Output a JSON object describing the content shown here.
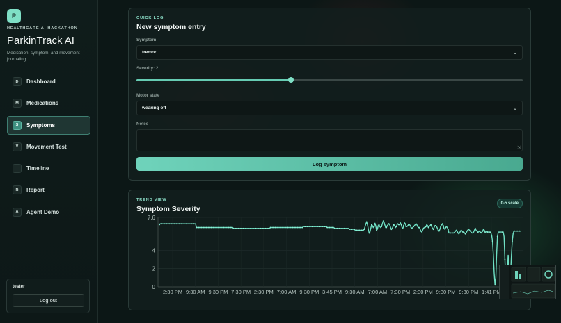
{
  "brand": {
    "logo_letter": "P",
    "eyebrow": "HEALTHCARE AI HACKATHON",
    "title": "ParkinTrack AI",
    "subtitle": "Medication, symptom, and movement journaling"
  },
  "nav": [
    {
      "badge": "D",
      "label": "Dashboard",
      "icon": "dashboard-icon"
    },
    {
      "badge": "M",
      "label": "Medications",
      "icon": "medications-icon"
    },
    {
      "badge": "S",
      "label": "Symptoms",
      "icon": "symptoms-icon",
      "active": true
    },
    {
      "badge": "V",
      "label": "Movement Test",
      "icon": "movement-icon"
    },
    {
      "badge": "T",
      "label": "Timeline",
      "icon": "timeline-icon"
    },
    {
      "badge": "R",
      "label": "Report",
      "icon": "report-icon"
    },
    {
      "badge": "A",
      "label": "Agent Demo",
      "icon": "agent-icon"
    }
  ],
  "user": {
    "name": "tester",
    "logout_label": "Log out"
  },
  "quick_log": {
    "eyebrow": "QUICK LOG",
    "title": "New symptom entry",
    "symptom_label": "Symptom",
    "symptom_value": "tremor",
    "severity_label": "Severity: 2",
    "severity_fraction": 0.4,
    "motor_label": "Motor state",
    "motor_value": "wearing off",
    "notes_label": "Notes",
    "notes_value": "",
    "submit_label": "Log symptom"
  },
  "trend": {
    "eyebrow": "TREND VIEW",
    "title": "Symptom Severity",
    "scale_badge": "0-5 scale"
  },
  "chart_data": {
    "type": "line",
    "yticks": [
      "7.6",
      "4",
      "2",
      "0"
    ],
    "ylim": [
      0,
      7.6
    ],
    "xticks": [
      "2:30 PM",
      "9:30 AM",
      "9:30 PM",
      "7:30 PM",
      "2:30 PM",
      "7:00 AM",
      "9:30 PM",
      "3:45 PM",
      "9:30 AM",
      "7:00 AM",
      "7:30 PM",
      "2:30 PM",
      "9:30 PM",
      "9:30 PM",
      "1:41 PM"
    ],
    "series": [
      {
        "values": [
          6.8,
          6.9,
          6.9,
          6.9,
          6.9,
          6.9,
          6.9,
          6.9,
          6.9,
          6.9,
          6.9,
          6.9,
          6.9,
          6.9,
          6.9,
          6.9,
          6.9,
          6.9,
          6.9,
          6.9,
          6.9,
          6.9,
          6.9,
          6.9,
          6.9,
          6.9,
          6.9,
          6.9,
          6.9,
          6.9,
          6.9,
          6.9,
          6.9,
          6.9,
          6.9,
          6.9,
          6.9,
          6.9,
          6.9,
          6.9,
          6.9,
          6.9,
          6.9,
          6.9,
          6.9,
          6.5,
          6.5,
          6.5,
          6.5,
          6.5,
          6.5,
          6.5,
          6.5,
          6.5,
          6.5,
          6.5,
          6.5,
          6.5,
          6.5,
          6.5,
          6.5,
          6.5,
          6.5,
          6.5,
          6.5,
          6.5,
          6.5,
          6.5,
          6.5,
          6.5,
          6.5,
          6.5,
          6.5,
          6.5,
          6.5,
          6.5,
          6.5,
          6.5,
          6.5,
          6.5,
          6.5,
          6.5,
          6.5,
          6.5,
          6.5,
          6.5,
          6.5,
          6.5,
          6.5,
          6.5,
          6.4,
          6.4,
          6.4,
          6.4,
          6.4,
          6.4,
          6.4,
          6.4,
          6.4,
          6.4,
          6.4,
          6.4,
          6.4,
          6.4,
          6.4,
          6.4,
          6.4,
          6.4,
          6.4,
          6.4,
          6.4,
          6.4,
          6.4,
          6.4,
          6.4,
          6.4,
          6.4,
          6.4,
          6.4,
          6.4,
          6.4,
          6.4,
          6.4,
          6.4,
          6.4,
          6.4,
          6.4,
          6.4,
          6.4,
          6.4,
          6.4,
          6.4,
          6.4,
          6.4,
          6.4,
          6.5,
          6.5,
          6.5,
          6.5,
          6.5,
          6.5,
          6.5,
          6.5,
          6.5,
          6.5,
          6.5,
          6.5,
          6.5,
          6.5,
          6.5,
          6.5,
          6.5,
          6.5,
          6.5,
          6.5,
          6.5,
          6.5,
          6.5,
          6.5,
          6.5,
          6.5,
          6.5,
          6.5,
          6.5,
          6.5,
          6.5,
          6.5,
          6.5,
          6.5,
          6.5,
          6.5,
          6.5,
          6.5,
          6.5,
          6.5,
          6.6,
          6.6,
          6.6,
          6.6,
          6.6,
          6.6,
          6.6,
          6.6,
          6.6,
          6.6,
          6.6,
          6.6,
          6.6,
          6.6,
          6.6,
          6.6,
          6.6,
          6.6,
          6.6,
          6.6,
          6.6,
          6.6,
          6.6,
          6.6,
          6.6,
          6.6,
          6.6,
          6.6,
          6.6,
          6.5,
          6.5,
          6.5,
          6.5,
          6.5,
          6.5,
          6.5,
          6.5,
          6.5,
          6.4,
          6.4,
          6.4,
          6.4,
          6.4,
          6.4,
          6.4,
          6.4,
          6.4,
          6.4,
          6.4,
          6.4,
          6.4,
          6.4,
          6.4,
          6.4,
          6.4,
          6.4,
          6.3,
          6.3,
          6.3,
          6.3,
          6.3,
          6.3,
          6.3,
          6.2,
          6.2,
          6.2,
          6.2,
          6.2,
          6.2,
          6.2,
          6.2,
          6.2,
          6.2,
          6.2,
          6.3,
          6.6,
          6.9,
          7.1,
          6.8,
          6.3,
          5.9,
          6.0,
          6.4,
          6.8,
          6.7,
          6.5,
          6.6,
          7.0,
          6.7,
          6.2,
          6.3,
          6.7,
          6.8,
          6.6,
          6.5,
          6.6,
          6.9,
          7.2,
          7.1,
          6.8,
          6.5,
          6.5,
          6.7,
          6.8,
          6.9,
          6.8,
          6.5,
          6.3,
          6.4,
          6.6,
          6.8,
          6.7,
          6.5,
          6.6,
          6.8,
          6.9,
          6.8,
          6.8,
          7.0,
          6.8,
          6.5,
          6.4,
          6.7,
          7.0,
          6.9,
          6.6,
          6.6,
          6.7,
          6.8,
          6.8,
          6.7,
          6.5,
          6.4,
          6.5,
          6.6,
          6.7,
          6.8,
          6.9,
          6.8,
          6.6,
          6.5,
          6.5,
          6.3,
          6.1,
          6.0,
          6.2,
          6.4,
          6.5,
          6.5,
          6.6,
          6.8,
          6.7,
          6.5,
          6.6,
          6.7,
          6.8,
          6.6,
          6.4,
          6.3,
          6.5,
          6.7,
          6.7,
          6.6,
          6.4,
          6.2,
          6.1,
          6.3,
          6.6,
          6.8,
          6.9,
          6.7,
          6.4,
          6.3,
          6.5,
          6.6,
          6.5,
          6.3,
          5.9,
          5.9,
          5.9,
          5.9,
          5.9,
          5.9,
          5.9,
          6.0,
          6.1,
          6.2,
          6.1,
          5.9,
          5.8,
          5.9,
          6.1,
          6.2,
          6.1,
          6.0,
          6.0,
          5.9,
          5.8,
          5.9,
          6.1,
          6.2,
          6.3,
          6.2,
          6.1,
          6.0,
          5.9,
          5.9,
          6.0,
          6.2,
          6.4,
          6.2,
          6.1,
          6.0,
          6.0,
          6.1,
          6.0,
          5.9,
          6.0,
          6.1,
          6.3,
          6.2,
          6.0,
          6.0,
          6.1,
          6.0,
          6.0,
          6.0,
          6.0,
          5.9,
          5.6,
          5.0,
          3.5,
          1.5,
          0.2,
          1.0,
          3.5,
          5.5,
          6.0,
          6.0,
          6.0,
          6.0,
          6.0,
          6.0,
          6.0,
          5.5,
          3.0,
          0.8,
          0.2,
          1.5,
          3.5,
          2.0,
          0.5,
          1.5,
          3.5,
          5.0,
          5.8,
          6.1,
          6.1,
          6.1,
          6.1,
          6.1,
          6.1,
          6.1,
          6.1,
          6.1,
          6.1
        ]
      }
    ]
  }
}
